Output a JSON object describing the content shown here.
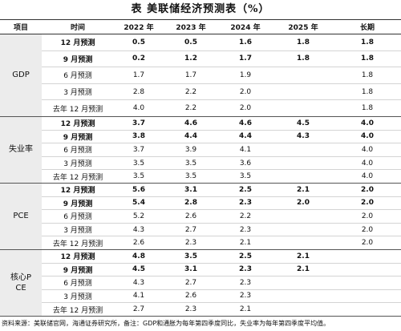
{
  "title": "表 美联储经济预测表（%）",
  "table": {
    "columns": [
      "项目",
      "时间",
      "2022 年",
      "2023 年",
      "2024 年",
      "2025 年",
      "长期"
    ],
    "groups": [
      {
        "label": "GDP",
        "rows": [
          {
            "time": "12 月预测",
            "values": [
              "0.5",
              "0.5",
              "1.6",
              "1.8",
              "1.8"
            ]
          },
          {
            "time": "9 月预测",
            "values": [
              "0.2",
              "1.2",
              "1.7",
              "1.8",
              "1.8"
            ]
          },
          {
            "time": "6 月预测",
            "values": [
              "1.7",
              "1.7",
              "1.9",
              null,
              "1.8"
            ]
          },
          {
            "time": "3 月预测",
            "values": [
              "2.8",
              "2.2",
              "2.0",
              null,
              "1.8"
            ]
          },
          {
            "time": "去年 12 月预测",
            "values": [
              "4.0",
              "2.2",
              "2.0",
              null,
              "1.8"
            ]
          }
        ]
      },
      {
        "label": "失业率",
        "rows": [
          {
            "time": "12 月预测",
            "values": [
              "3.7",
              "4.6",
              "4.6",
              "4.5",
              "4.0"
            ]
          },
          {
            "time": "9 月预测",
            "values": [
              "3.8",
              "4.4",
              "4.4",
              "4.3",
              "4.0"
            ]
          },
          {
            "time": "6 月预测",
            "values": [
              "3.7",
              "3.9",
              "4.1",
              null,
              "4.0"
            ]
          },
          {
            "time": "3 月预测",
            "values": [
              "3.5",
              "3.5",
              "3.6",
              null,
              "4.0"
            ]
          },
          {
            "time": "去年 12 月预测",
            "values": [
              "3.5",
              "3.5",
              "3.5",
              null,
              "4.0"
            ]
          }
        ]
      },
      {
        "label": "PCE",
        "rows": [
          {
            "time": "12 月预测",
            "values": [
              "5.6",
              "3.1",
              "2.5",
              "2.1",
              "2.0"
            ]
          },
          {
            "time": "9 月预测",
            "values": [
              "5.4",
              "2.8",
              "2.3",
              "2.0",
              "2.0"
            ]
          },
          {
            "time": "6 月预测",
            "values": [
              "5.2",
              "2.6",
              "2.2",
              null,
              "2.0"
            ]
          },
          {
            "time": "3 月预测",
            "values": [
              "4.3",
              "2.7",
              "2.3",
              null,
              "2.0"
            ]
          },
          {
            "time": "去年 12 月预测",
            "values": [
              "2.6",
              "2.3",
              "2.1",
              null,
              "2.0"
            ]
          }
        ]
      },
      {
        "label": "核心PCE",
        "rows": [
          {
            "time": "12 月预测",
            "values": [
              "4.8",
              "3.5",
              "2.5",
              "2.1",
              null
            ]
          },
          {
            "time": "9 月预测",
            "values": [
              "4.5",
              "3.1",
              "2.3",
              "2.1",
              null
            ]
          },
          {
            "time": "6 月预测",
            "values": [
              "4.3",
              "2.7",
              "2.3",
              null,
              null
            ]
          },
          {
            "time": "3 月预测",
            "values": [
              "4.1",
              "2.6",
              "2.3",
              null,
              null
            ]
          },
          {
            "time": "去年 12 月预测",
            "values": [
              "2.7",
              "2.3",
              "2.1",
              null,
              null
            ]
          }
        ]
      }
    ]
  },
  "footnote": "资料来源：美联储官网，海通证券研究所，备注：GDP和通胀为每年第四季度同比，失业率为每年第四季度平均值。"
}
